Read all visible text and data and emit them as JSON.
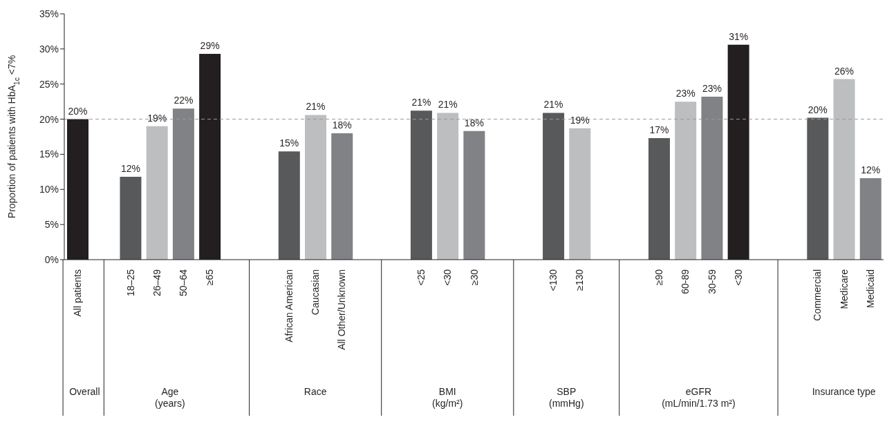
{
  "chart_data": {
    "type": "bar",
    "ylabel": "Proportion of patients with HbA$_{1c}$ <7%",
    "categories": [
      "All patients",
      null,
      "18–25",
      "26–49",
      "50–64",
      "≥65",
      null,
      null,
      "African American",
      "Caucasian",
      "All Other/Unknown",
      null,
      null,
      "<25",
      "<30",
      "≥30",
      null,
      null,
      "<130",
      "≥130",
      null,
      null,
      "≥90",
      "60-89",
      "30-59",
      "<30",
      null,
      null,
      "Commercial",
      "Medicare",
      "Medicaid"
    ],
    "values": [
      20,
      null,
      11.8,
      19,
      21.5,
      29.3,
      null,
      null,
      15.4,
      20.6,
      18,
      null,
      null,
      21.2,
      20.9,
      18.3,
      null,
      null,
      20.9,
      18.7,
      null,
      null,
      17.3,
      22.5,
      23.2,
      30.6,
      null,
      null,
      20.2,
      25.7,
      11.6
    ],
    "value_labels": [
      "20%",
      null,
      "12%",
      "19%",
      "22%",
      "29%",
      null,
      null,
      "15%",
      "21%",
      "18%",
      null,
      null,
      "21%",
      "21%",
      "18%",
      null,
      null,
      "21%",
      "19%",
      null,
      null,
      "17%",
      "23%",
      "23%",
      "31%",
      null,
      null,
      "20%",
      "26%",
      "12%"
    ],
    "colors": [
      "#231f20",
      null,
      "#58595b",
      "#bcbec0",
      "#808285",
      "#231f20",
      null,
      null,
      "#58595b",
      "#bcbec0",
      "#808285",
      null,
      null,
      "#58595b",
      "#bcbec0",
      "#808285",
      null,
      null,
      "#58595b",
      "#bcbec0",
      null,
      null,
      "#58595b",
      "#bcbec0",
      "#808285",
      "#231f20",
      null,
      null,
      "#58595b",
      "#bcbec0",
      "#808285"
    ],
    "annotations": [
      "Overall",
      "Age\n(years)",
      "Race",
      "BMI\n(kg/m²)",
      "SBP\n(mmHg)",
      "eGFR\n(mL/min/1.73 m²)",
      "Insurance type"
    ],
    "ylim": [
      0,
      35
    ],
    "yticks": [
      {
        "value": 0,
        "label": "0%"
      },
      {
        "value": 5,
        "label": "5%"
      },
      {
        "value": 10,
        "label": "10%"
      },
      {
        "value": 15,
        "label": "15%"
      },
      {
        "value": 20,
        "label": "20%"
      },
      {
        "value": 25,
        "label": "25%"
      },
      {
        "value": 30,
        "label": "30%"
      },
      {
        "value": 35,
        "label": "35%"
      }
    ],
    "ref_lines": [
      {
        "axis": "y",
        "value": 20,
        "color": "#999999",
        "line_style": "dashed"
      }
    ]
  }
}
